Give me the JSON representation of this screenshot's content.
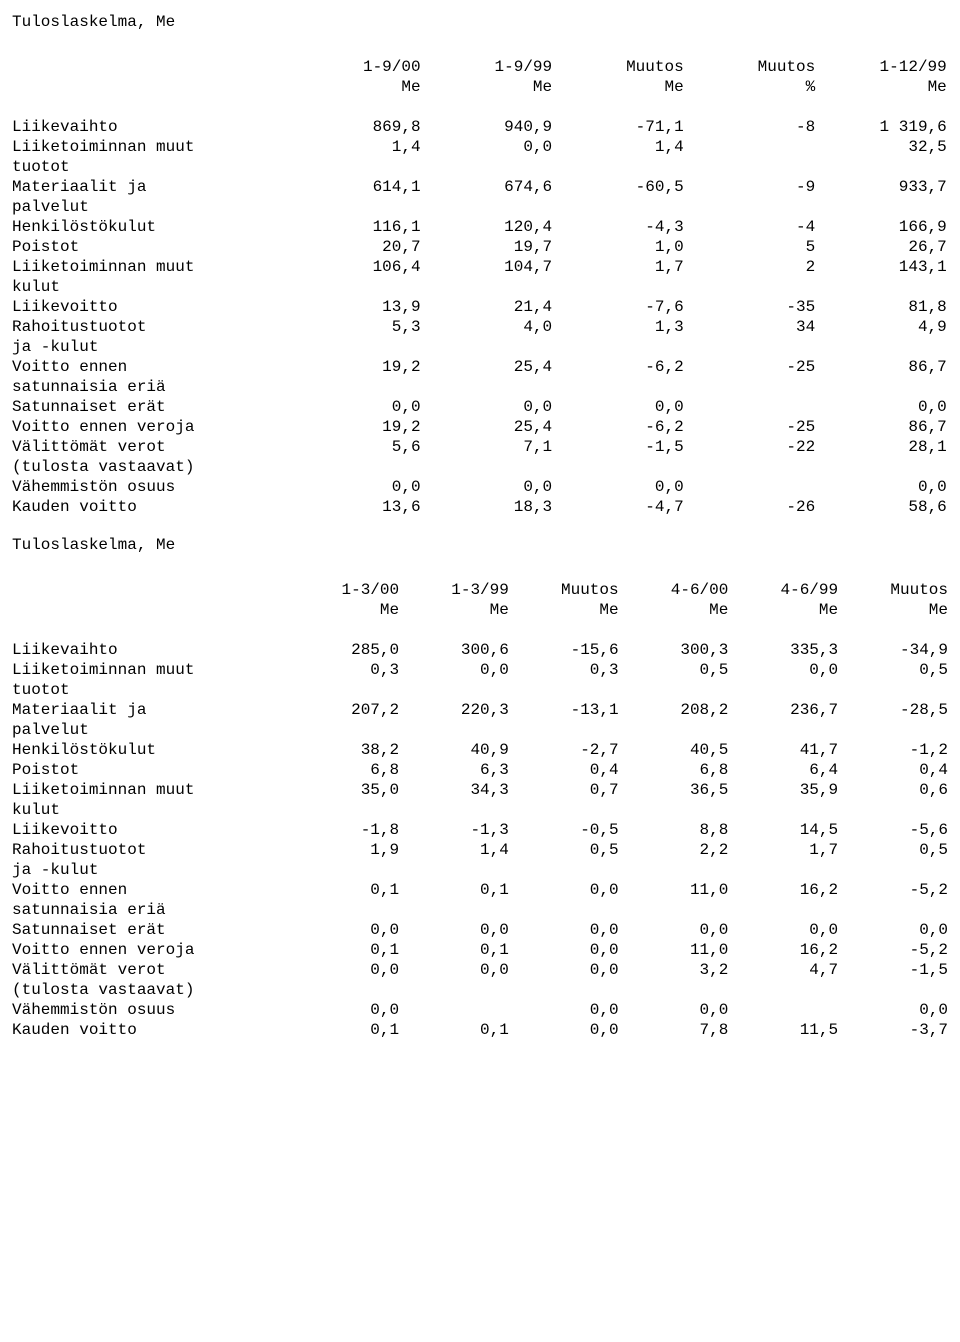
{
  "title1": "Tuloslaskelma, Me",
  "title2": "Tuloslaskelma, Me",
  "header1": {
    "c1a": "1-9/00",
    "c1b": "Me",
    "c2a": "1-9/99",
    "c2b": "Me",
    "c3a": "Muutos",
    "c3b": "Me",
    "c4a": "Muutos",
    "c4b": "%",
    "c5a": "1-12/99",
    "c5b": "Me"
  },
  "rows1": [
    {
      "label": "Liikevaihto",
      "v": [
        "869,8",
        "940,9",
        "-71,1",
        "-8",
        "1 319,6"
      ]
    },
    {
      "label": "Liiketoiminnan muut\ntuotot",
      "v": [
        "1,4",
        "0,0",
        "1,4",
        "",
        "32,5"
      ]
    },
    {
      "label": "Materiaalit ja\npalvelut",
      "v": [
        "614,1",
        "674,6",
        "-60,5",
        "-9",
        "933,7"
      ]
    },
    {
      "label": "Henkilöstökulut",
      "v": [
        "116,1",
        "120,4",
        "-4,3",
        "-4",
        "166,9"
      ]
    },
    {
      "label": "Poistot",
      "v": [
        "20,7",
        "19,7",
        "1,0",
        "5",
        "26,7"
      ]
    },
    {
      "label": "Liiketoiminnan muut\nkulut",
      "v": [
        "106,4",
        "104,7",
        "1,7",
        "2",
        "143,1"
      ]
    },
    {
      "label": "Liikevoitto",
      "v": [
        "13,9",
        "21,4",
        "-7,6",
        "-35",
        "81,8"
      ]
    },
    {
      "label": "Rahoitustuotot\nja -kulut",
      "v": [
        "5,3",
        "4,0",
        "1,3",
        "34",
        "4,9"
      ]
    },
    {
      "label": "Voitto ennen\nsatunnaisia eriä",
      "v": [
        "19,2",
        "25,4",
        "-6,2",
        "-25",
        "86,7"
      ]
    },
    {
      "label": "Satunnaiset erät",
      "v": [
        "0,0",
        "0,0",
        "0,0",
        "",
        "0,0"
      ]
    },
    {
      "label": "Voitto ennen veroja",
      "v": [
        "19,2",
        "25,4",
        "-6,2",
        "-25",
        "86,7"
      ]
    },
    {
      "label": "Välittömät verot\n(tulosta vastaavat)",
      "v": [
        "5,6",
        "7,1",
        "-1,5",
        "-22",
        "28,1"
      ]
    },
    {
      "label": "Vähemmistön osuus",
      "v": [
        "0,0",
        "0,0",
        "0,0",
        "",
        "0,0"
      ]
    },
    {
      "label": "Kauden voitto",
      "v": [
        "13,6",
        "18,3",
        "-4,7",
        "-26",
        "58,6"
      ]
    }
  ],
  "header2": {
    "c1a": "1-3/00",
    "c1b": "Me",
    "c2a": "1-3/99",
    "c2b": "Me",
    "c3a": "Muutos",
    "c3b": "Me",
    "c4a": "4-6/00",
    "c4b": "Me",
    "c5a": "4-6/99",
    "c5b": "Me",
    "c6a": "Muutos",
    "c6b": "Me"
  },
  "rows2": [
    {
      "label": "Liikevaihto",
      "v": [
        "285,0",
        "300,6",
        "-15,6",
        "300,3",
        "335,3",
        "-34,9"
      ]
    },
    {
      "label": "Liiketoiminnan muut\ntuotot",
      "v": [
        "0,3",
        "0,0",
        "0,3",
        "0,5",
        "0,0",
        "0,5"
      ]
    },
    {
      "label": "Materiaalit ja\npalvelut",
      "v": [
        "207,2",
        "220,3",
        "-13,1",
        "208,2",
        "236,7",
        "-28,5"
      ]
    },
    {
      "label": "Henkilöstökulut",
      "v": [
        "38,2",
        "40,9",
        "-2,7",
        "40,5",
        "41,7",
        "-1,2"
      ]
    },
    {
      "label": "Poistot",
      "v": [
        "6,8",
        "6,3",
        "0,4",
        "6,8",
        "6,4",
        "0,4"
      ]
    },
    {
      "label": "Liiketoiminnan muut\nkulut",
      "v": [
        "35,0",
        "34,3",
        "0,7",
        "36,5",
        "35,9",
        "0,6"
      ]
    },
    {
      "label": "Liikevoitto",
      "v": [
        "-1,8",
        "-1,3",
        "-0,5",
        "8,8",
        "14,5",
        "-5,6"
      ]
    },
    {
      "label": "Rahoitustuotot\nja -kulut",
      "v": [
        "1,9",
        "1,4",
        "0,5",
        "2,2",
        "1,7",
        "0,5"
      ]
    },
    {
      "label": "Voitto ennen\nsatunnaisia eriä",
      "v": [
        "0,1",
        "0,1",
        "0,0",
        "11,0",
        "16,2",
        "-5,2"
      ]
    },
    {
      "label": "Satunnaiset erät",
      "v": [
        "0,0",
        "0,0",
        "0,0",
        "0,0",
        "0,0",
        "0,0"
      ]
    },
    {
      "label": "Voitto ennen veroja",
      "v": [
        "0,1",
        "0,1",
        "0,0",
        "11,0",
        "16,2",
        "-5,2"
      ]
    },
    {
      "label": "Välittömät verot\n(tulosta vastaavat)",
      "v": [
        "0,0",
        "0,0",
        "0,0",
        "3,2",
        "4,7",
        "-1,5"
      ]
    },
    {
      "label": "Vähemmistön osuus",
      "v": [
        "0,0",
        "",
        "0,0",
        "0,0",
        "",
        "0,0"
      ]
    },
    {
      "label": "Kauden voitto",
      "v": [
        "0,1",
        "0,1",
        "0,0",
        "7,8",
        "11,5",
        "-3,7"
      ]
    }
  ]
}
